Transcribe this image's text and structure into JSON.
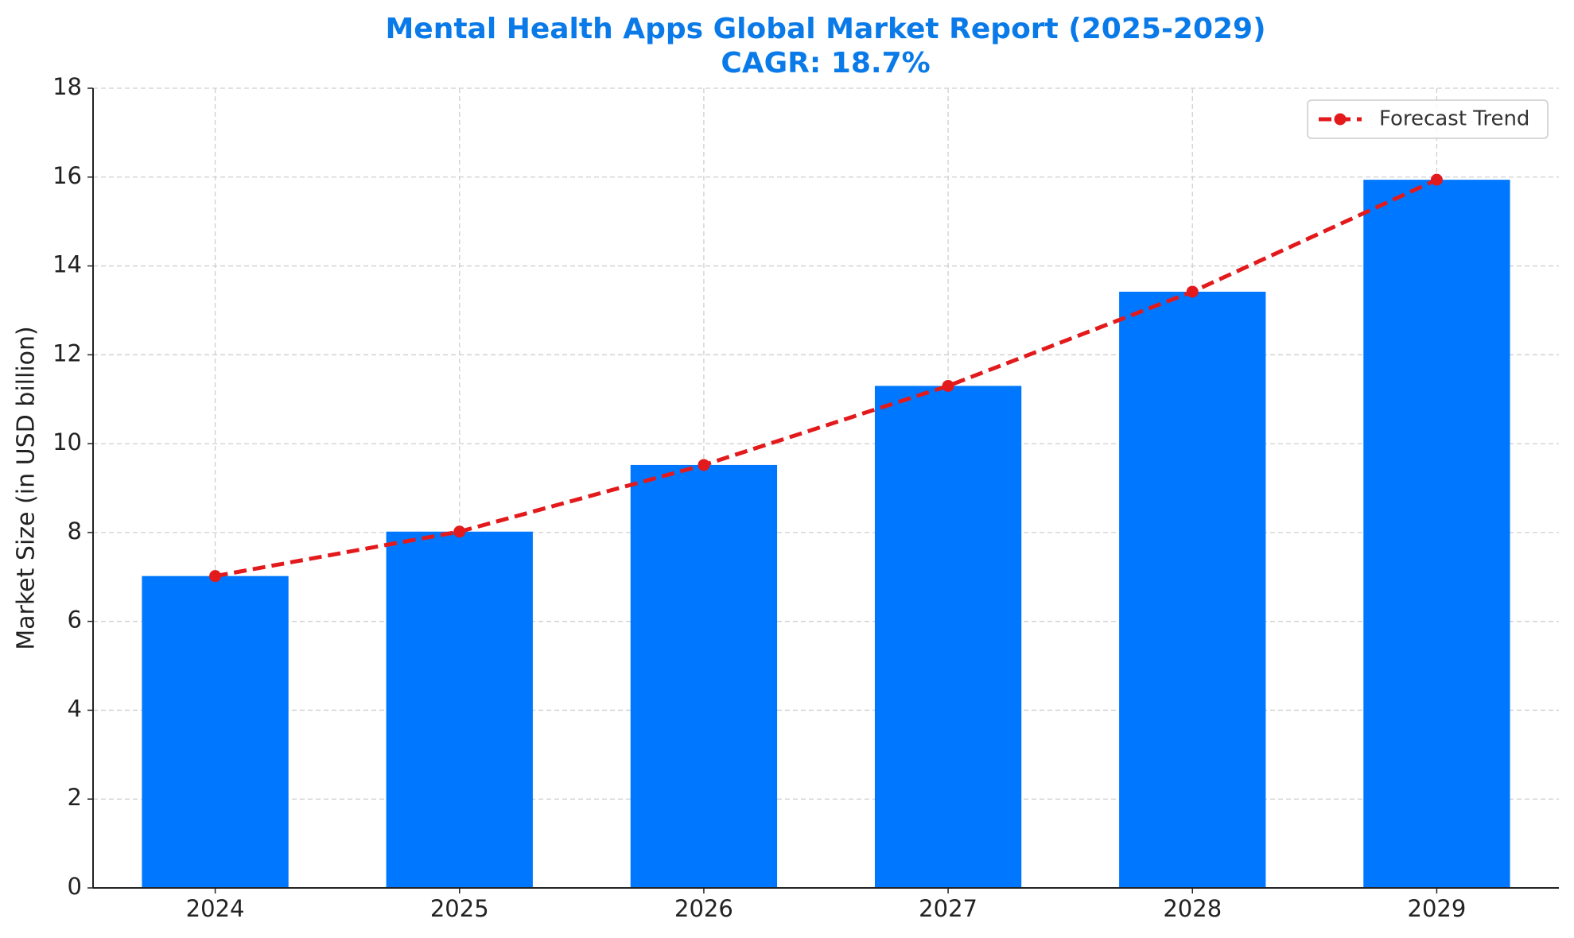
{
  "chart_data": {
    "type": "bar",
    "title": "Mental Health Apps Global Market Report (2025-2029)",
    "subtitle": "CAGR: 18.7%",
    "y_label": "Market Size (in USD billion)",
    "categories": [
      "2024",
      "2025",
      "2026",
      "2027",
      "2028",
      "2029"
    ],
    "values": [
      7.02,
      8.02,
      9.52,
      11.3,
      13.42,
      15.94
    ],
    "color": "#0077ff",
    "series": [
      {
        "name": "Forecast Trend",
        "type": "line",
        "color": "#e31a1c",
        "values": [
          7.02,
          8.02,
          9.52,
          11.3,
          13.42,
          15.94
        ]
      }
    ],
    "ylim": [
      0,
      18
    ],
    "yticks": [
      0,
      2,
      4,
      6,
      8,
      10,
      12,
      14,
      16,
      18
    ],
    "grid": true,
    "legend": "upper right"
  }
}
